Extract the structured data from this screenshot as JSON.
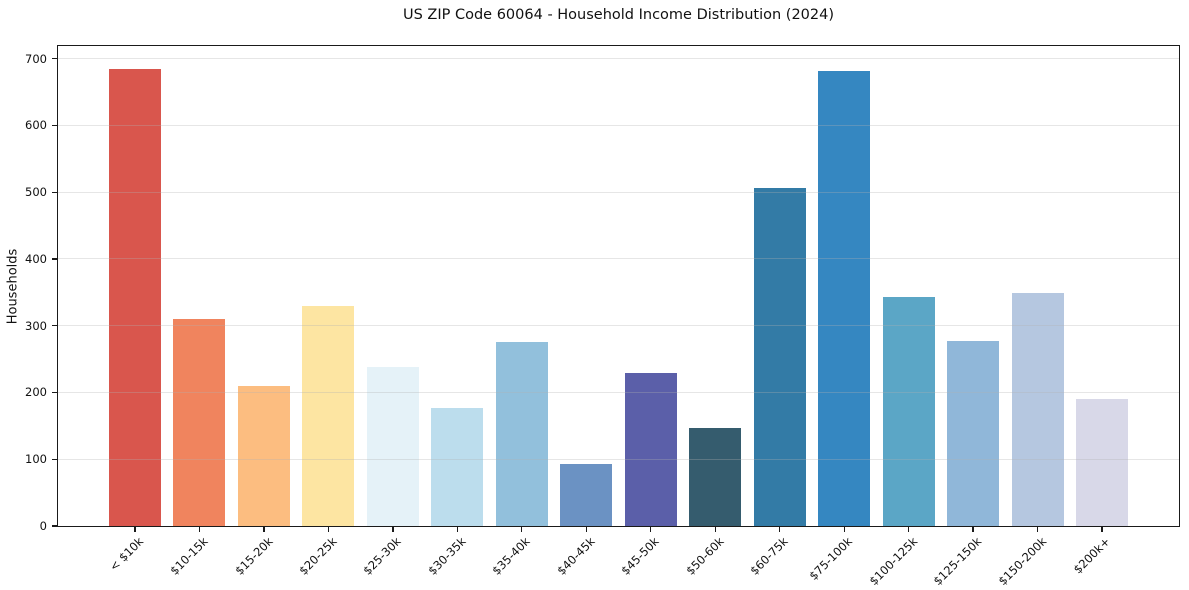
{
  "figure": {
    "background": "#ffffff"
  },
  "chart_data": {
    "type": "bar",
    "title": "US ZIP Code 60064 - Household Income Distribution (2024)",
    "xlabel": "",
    "ylabel": "Households",
    "categories": [
      "< $10k",
      "$10-15k",
      "$15-20k",
      "$20-25k",
      "$25-30k",
      "$30-35k",
      "$35-40k",
      "$40-45k",
      "$45-50k",
      "$50-60k",
      "$60-75k",
      "$75-100k",
      "$100-125k",
      "$125-150k",
      "$150-200k",
      "$200k+"
    ],
    "values": [
      685,
      310,
      209,
      330,
      238,
      177,
      276,
      93,
      229,
      147,
      506,
      682,
      343,
      277,
      349,
      190
    ],
    "bar_colors": [
      "#d9564d",
      "#f0845e",
      "#fcbd80",
      "#fde5a2",
      "#e5f2f8",
      "#bcdded",
      "#92c0dc",
      "#6b92c3",
      "#5b5fa9",
      "#355c6e",
      "#337ba6",
      "#3587c1",
      "#5ba6c6",
      "#90b7d9",
      "#b5c7e0",
      "#d8d8e8"
    ],
    "yticks": [
      0,
      100,
      200,
      300,
      400,
      500,
      600,
      700
    ],
    "ylim": [
      0,
      719
    ],
    "grid": "horizontal",
    "grid_color": "rgba(178,178,178,0.32)",
    "axis_color": "#1a1a1a",
    "legend": "none"
  }
}
